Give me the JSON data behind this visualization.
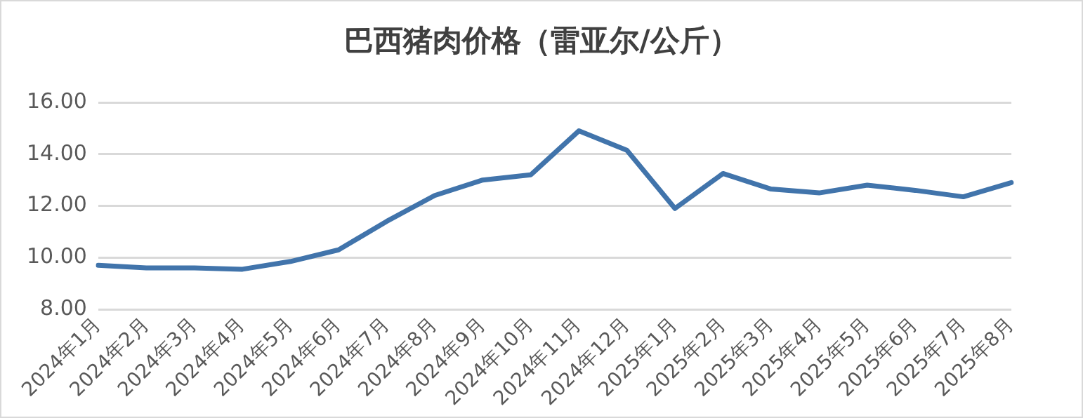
{
  "chart_data": {
    "type": "line",
    "title": "巴西猪肉价格（雷亚尔/公斤）",
    "categories": [
      "2024年1月",
      "2024年2月",
      "2024年3月",
      "2024年4月",
      "2024年5月",
      "2024年6月",
      "2024年7月",
      "2024年8月",
      "2024年9月",
      "2024年10月",
      "2024年11月",
      "2024年12月",
      "2025年1月",
      "2025年2月",
      "2025年3月",
      "2025年4月",
      "2025年5月",
      "2025年6月",
      "2025年7月",
      "2025年8月"
    ],
    "series": [
      {
        "color": "#4174ab",
        "values": [
          9.7,
          9.6,
          9.6,
          9.55,
          9.85,
          10.3,
          11.4,
          12.4,
          13.0,
          13.2,
          14.9,
          14.15,
          11.9,
          13.25,
          12.65,
          12.5,
          12.8,
          12.6,
          12.35,
          12.9
        ]
      }
    ],
    "ylim": [
      8,
      16
    ],
    "yticks": [
      {
        "value": 8,
        "label": "8.00"
      },
      {
        "value": 10,
        "label": "10.00"
      },
      {
        "value": 12,
        "label": "12.00"
      },
      {
        "value": 14,
        "label": "14.00"
      },
      {
        "value": 16,
        "label": "16.00"
      }
    ],
    "grid": "y",
    "legend": false,
    "marker": "none",
    "line_style": "solid"
  }
}
